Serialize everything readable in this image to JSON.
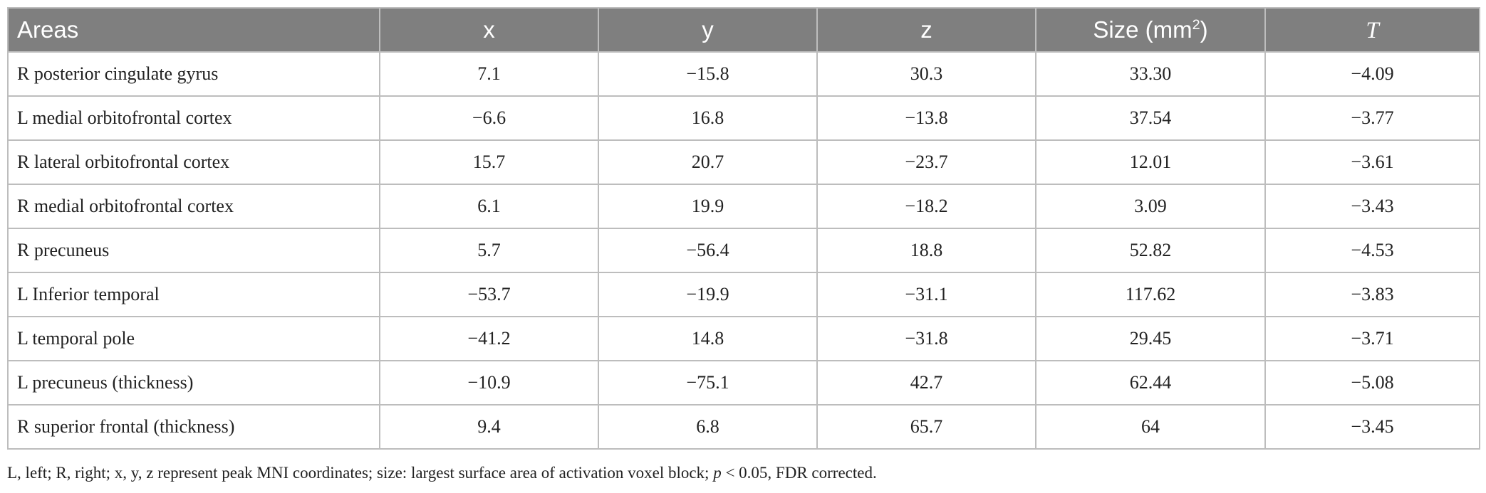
{
  "table": {
    "headers": {
      "areas": "Areas",
      "x": "x",
      "y": "y",
      "z": "z",
      "size_label": "Size (mm",
      "size_sup": "2",
      "size_close": ")",
      "t": "T"
    },
    "rows": [
      {
        "area": "R posterior cingulate gyrus",
        "x": "7.1",
        "y": "−15.8",
        "z": "30.3",
        "size": "33.30",
        "t": "−4.09"
      },
      {
        "area": "L medial orbitofrontal cortex",
        "x": "−6.6",
        "y": "16.8",
        "z": "−13.8",
        "size": "37.54",
        "t": "−3.77"
      },
      {
        "area": "R lateral orbitofrontal cortex",
        "x": "15.7",
        "y": "20.7",
        "z": "−23.7",
        "size": "12.01",
        "t": "−3.61"
      },
      {
        "area": "R medial orbitofrontal cortex",
        "x": "6.1",
        "y": "19.9",
        "z": "−18.2",
        "size": "3.09",
        "t": "−3.43"
      },
      {
        "area": "R precuneus",
        "x": "5.7",
        "y": "−56.4",
        "z": "18.8",
        "size": "52.82",
        "t": "−4.53"
      },
      {
        "area": "L Inferior temporal",
        "x": "−53.7",
        "y": "−19.9",
        "z": "−31.1",
        "size": "117.62",
        "t": "−3.83"
      },
      {
        "area": "L temporal pole",
        "x": "−41.2",
        "y": "14.8",
        "z": "−31.8",
        "size": "29.45",
        "t": "−3.71"
      },
      {
        "area": "L precuneus (thickness)",
        "x": "−10.9",
        "y": "−75.1",
        "z": "42.7",
        "size": "62.44",
        "t": "−5.08"
      },
      {
        "area": "R superior frontal (thickness)",
        "x": "9.4",
        "y": "6.8",
        "z": "65.7",
        "size": "64",
        "t": "−3.45"
      }
    ]
  },
  "footnote": {
    "before": "L, left; R, right; x, y, z represent peak MNI coordinates; size: largest surface area of activation voxel block; ",
    "p": "p",
    "after": " < 0.05, FDR corrected."
  },
  "colors": {
    "header_bg": "#7f7f7f",
    "header_text": "#ffffff",
    "border": "#bdbdbd",
    "body_text": "#222222"
  }
}
